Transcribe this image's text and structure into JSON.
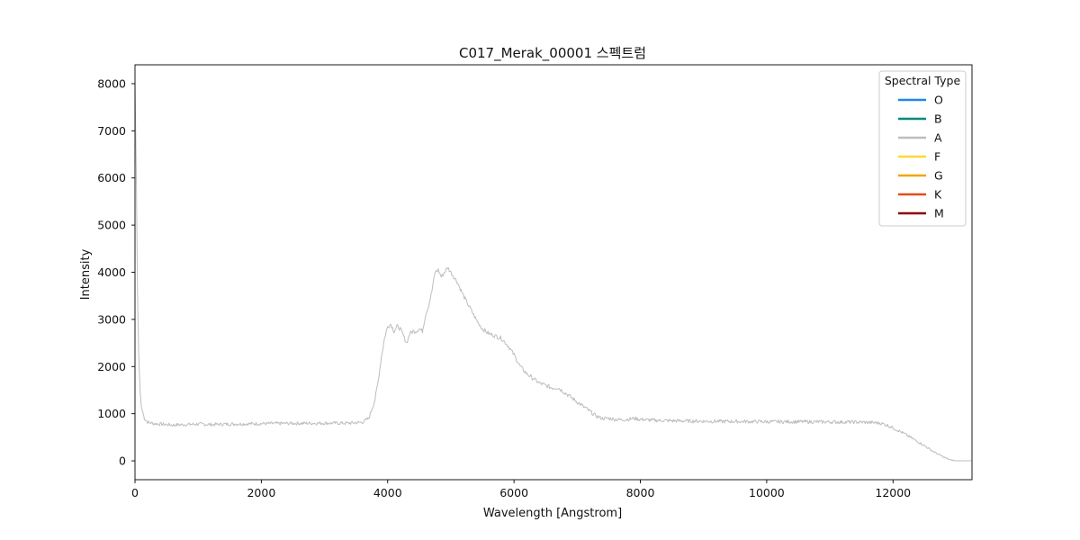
{
  "chart_data": {
    "type": "line",
    "title": "C017_Merak_00001 스펙트럼",
    "xlabel": "Wavelength [Angstrom]",
    "ylabel": "Intensity",
    "xlim": [
      0,
      13250
    ],
    "ylim": [
      -400,
      8400
    ],
    "xticks": [
      0,
      2000,
      4000,
      6000,
      8000,
      10000,
      12000
    ],
    "yticks": [
      0,
      1000,
      2000,
      3000,
      4000,
      5000,
      6000,
      7000,
      8000
    ],
    "grid": false,
    "legend": {
      "title": "Spectral Type",
      "placement": "top-right",
      "entries": [
        {
          "label": "O",
          "color": "#1e88e5"
        },
        {
          "label": "B",
          "color": "#00897b"
        },
        {
          "label": "A",
          "color": "#bdbdbd"
        },
        {
          "label": "F",
          "color": "#fdd835"
        },
        {
          "label": "G",
          "color": "#f0a500"
        },
        {
          "label": "K",
          "color": "#e64a19"
        },
        {
          "label": "M",
          "color": "#8b0000"
        }
      ]
    },
    "series": [
      {
        "name": "A",
        "color": "#bdbdbd",
        "x": [
          0,
          20,
          40,
          60,
          80,
          100,
          150,
          200,
          300,
          400,
          500,
          600,
          800,
          1000,
          1200,
          1500,
          2000,
          2500,
          3000,
          3400,
          3600,
          3700,
          3800,
          3850,
          3900,
          3950,
          4000,
          4050,
          4100,
          4150,
          4200,
          4250,
          4300,
          4350,
          4400,
          4450,
          4500,
          4550,
          4600,
          4650,
          4700,
          4750,
          4800,
          4850,
          4900,
          4950,
          5000,
          5050,
          5100,
          5200,
          5300,
          5400,
          5500,
          5600,
          5700,
          5800,
          5900,
          6000,
          6100,
          6200,
          6300,
          6400,
          6500,
          6600,
          6700,
          6800,
          6900,
          7000,
          7100,
          7200,
          7300,
          7400,
          7500,
          7600,
          7700,
          7800,
          7900,
          8000,
          8200,
          8500,
          9000,
          9500,
          10000,
          10500,
          11000,
          11500,
          11700,
          11800,
          11900,
          12000,
          12100,
          12200,
          12300,
          12400,
          12500,
          12600,
          12700,
          12800,
          12900,
          13000,
          13100,
          13250
        ],
        "y": [
          8000,
          6200,
          3500,
          2200,
          1500,
          1150,
          900,
          820,
          790,
          780,
          770,
          760,
          770,
          780,
          770,
          780,
          790,
          795,
          800,
          800,
          820,
          900,
          1300,
          1700,
          2200,
          2600,
          2850,
          2900,
          2750,
          2850,
          2800,
          2650,
          2500,
          2700,
          2750,
          2750,
          2800,
          2750,
          3100,
          3300,
          3600,
          4000,
          4050,
          3900,
          4000,
          4100,
          4000,
          3900,
          3800,
          3500,
          3250,
          3000,
          2800,
          2700,
          2650,
          2600,
          2450,
          2250,
          2000,
          1850,
          1750,
          1650,
          1600,
          1550,
          1550,
          1450,
          1350,
          1250,
          1150,
          1050,
          950,
          900,
          900,
          880,
          870,
          880,
          900,
          880,
          860,
          850,
          840,
          835,
          830,
          830,
          825,
          820,
          810,
          800,
          760,
          700,
          630,
          560,
          480,
          400,
          320,
          230,
          150,
          80,
          20,
          0,
          0,
          0
        ]
      }
    ]
  }
}
